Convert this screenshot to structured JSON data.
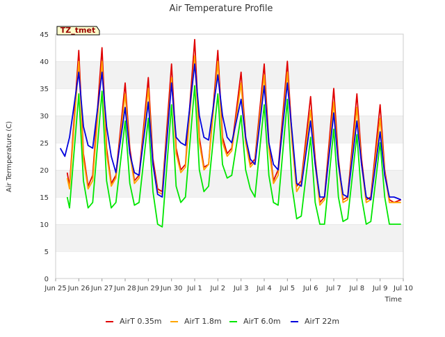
{
  "chart_data": {
    "type": "line",
    "title": "Air Temperature Profile",
    "xlabel": "Time",
    "ylabel": "Air Termperature (C)",
    "site_label": "TZ_tmet",
    "ylim": [
      0,
      45
    ],
    "yticks": [
      0,
      5,
      10,
      15,
      20,
      25,
      30,
      35,
      40,
      45
    ],
    "xlim": [
      0,
      15
    ],
    "xtick_labels": [
      "Jun 25",
      "Jun 26",
      "Jun 27",
      "Jun 28",
      "Jun 29",
      "Jun 30",
      "Jul 1",
      "Jul 2",
      "Jul 3",
      "Jul 4",
      "Jul 5",
      "Jul 6",
      "Jul 7",
      "Jul 8",
      "Jul 9",
      "Jul 10"
    ],
    "x_units": "days since Jun 25 00:00",
    "grid": "horizontal bands",
    "legend_position": "bottom",
    "series": [
      {
        "name": "AirT 0.35m",
        "color": "#e00000",
        "x": [
          0.5,
          0.6,
          1.0,
          1.2,
          1.4,
          1.6,
          2.0,
          2.2,
          2.4,
          2.6,
          3.0,
          3.2,
          3.4,
          3.6,
          4.0,
          4.2,
          4.4,
          4.6,
          5.0,
          5.2,
          5.4,
          5.6,
          6.0,
          6.2,
          6.4,
          6.6,
          7.0,
          7.2,
          7.4,
          7.6,
          8.0,
          8.2,
          8.4,
          8.6,
          9.0,
          9.2,
          9.4,
          9.6,
          10.0,
          10.2,
          10.4,
          10.6,
          11.0,
          11.2,
          11.4,
          11.6,
          12.0,
          12.2,
          12.4,
          12.6,
          13.0,
          13.2,
          13.4,
          13.6,
          14.0,
          14.2,
          14.4,
          14.6,
          14.9
        ],
        "values": [
          19.5,
          17,
          42,
          23,
          17,
          19,
          42.5,
          24,
          17.5,
          19,
          36,
          24,
          18,
          19,
          37,
          22,
          16.5,
          16,
          39.5,
          24,
          20,
          21,
          44,
          26,
          20.5,
          21,
          42,
          26,
          23,
          24,
          38,
          26,
          21,
          22,
          39.5,
          25,
          18,
          20,
          40,
          26,
          17,
          18,
          33.5,
          22,
          14,
          15,
          35,
          22,
          14.5,
          15,
          34,
          22,
          14.5,
          15,
          32,
          20,
          14.5,
          14,
          14.5
        ]
      },
      {
        "name": "AirT 1.8m",
        "color": "#ffa500",
        "x": [
          0.5,
          0.6,
          1.0,
          1.2,
          1.4,
          1.6,
          2.0,
          2.2,
          2.4,
          2.6,
          3.0,
          3.2,
          3.4,
          3.6,
          4.0,
          4.2,
          4.4,
          4.6,
          5.0,
          5.2,
          5.4,
          5.6,
          6.0,
          6.2,
          6.4,
          6.6,
          7.0,
          7.2,
          7.4,
          7.6,
          8.0,
          8.2,
          8.4,
          8.6,
          9.0,
          9.2,
          9.4,
          9.6,
          10.0,
          10.2,
          10.4,
          10.6,
          11.0,
          11.2,
          11.4,
          11.6,
          12.0,
          12.2,
          12.4,
          12.6,
          13.0,
          13.2,
          13.4,
          13.6,
          14.0,
          14.2,
          14.4,
          14.6,
          14.9
        ],
        "values": [
          18.5,
          16.5,
          40,
          22,
          16.5,
          18,
          40,
          23,
          17,
          18.5,
          34,
          23,
          17.5,
          18.5,
          35,
          21,
          16,
          15.5,
          37,
          23,
          19.5,
          20.5,
          41,
          25,
          20,
          21,
          40,
          25,
          22.5,
          23.5,
          36,
          25,
          20.5,
          21.5,
          37.5,
          24,
          17.5,
          19,
          38,
          25,
          16,
          17.5,
          31,
          21,
          13.5,
          14.5,
          32.5,
          21,
          14,
          14.5,
          31.5,
          21,
          14,
          14.5,
          29.5,
          19.5,
          14,
          14,
          14
        ]
      },
      {
        "name": "AirT 6.0m",
        "color": "#00e600",
        "x": [
          0.5,
          0.6,
          1.0,
          1.2,
          1.4,
          1.6,
          2.0,
          2.2,
          2.4,
          2.6,
          3.0,
          3.2,
          3.4,
          3.6,
          4.0,
          4.2,
          4.4,
          4.6,
          5.0,
          5.2,
          5.4,
          5.6,
          6.0,
          6.2,
          6.4,
          6.6,
          7.0,
          7.2,
          7.4,
          7.6,
          8.0,
          8.2,
          8.4,
          8.6,
          9.0,
          9.2,
          9.4,
          9.6,
          10.0,
          10.2,
          10.4,
          10.6,
          11.0,
          11.2,
          11.4,
          11.6,
          12.0,
          12.2,
          12.4,
          12.6,
          13.0,
          13.2,
          13.4,
          13.6,
          14.0,
          14.2,
          14.4,
          14.6,
          14.9
        ],
        "values": [
          15,
          13,
          34,
          18,
          13,
          14,
          34.5,
          18,
          13,
          14,
          29,
          17.5,
          13.5,
          14,
          29.5,
          16,
          10,
          9.5,
          32,
          17,
          14,
          15,
          35.5,
          20,
          16,
          17,
          34,
          21,
          18.5,
          19,
          30,
          20,
          16.5,
          15,
          32,
          19,
          14,
          13.5,
          33,
          17,
          11,
          11.5,
          26,
          14,
          10,
          10,
          27.5,
          15,
          10.5,
          11,
          26.5,
          15,
          10,
          10.5,
          25,
          15,
          10,
          10,
          10
        ]
      },
      {
        "name": "AirT 22m",
        "color": "#0000dd",
        "x": [
          0.2,
          0.4,
          0.6,
          1.0,
          1.2,
          1.4,
          1.6,
          2.0,
          2.2,
          2.4,
          2.6,
          3.0,
          3.2,
          3.4,
          3.6,
          4.0,
          4.2,
          4.4,
          4.6,
          5.0,
          5.2,
          5.4,
          5.6,
          6.0,
          6.2,
          6.4,
          6.6,
          7.0,
          7.2,
          7.4,
          7.6,
          8.0,
          8.2,
          8.4,
          8.6,
          9.0,
          9.2,
          9.4,
          9.6,
          10.0,
          10.2,
          10.4,
          10.6,
          11.0,
          11.2,
          11.4,
          11.6,
          12.0,
          12.2,
          12.4,
          12.6,
          13.0,
          13.2,
          13.4,
          13.6,
          14.0,
          14.2,
          14.4,
          14.6,
          14.9
        ],
        "values": [
          24,
          22.5,
          26,
          38,
          28,
          24.5,
          24,
          38,
          28,
          22.5,
          19.5,
          31.5,
          23,
          19.5,
          19,
          32.5,
          21,
          15.5,
          15,
          36,
          26,
          25,
          24.5,
          39.5,
          30,
          26,
          25.5,
          37.5,
          30,
          26,
          25,
          33,
          26,
          22,
          21,
          35.5,
          25,
          21,
          20,
          36,
          27,
          17.5,
          17,
          29,
          21,
          15,
          15,
          30.5,
          21,
          15.5,
          15,
          29,
          21,
          15,
          14.5,
          27,
          19,
          15,
          15,
          14.5
        ]
      }
    ]
  }
}
